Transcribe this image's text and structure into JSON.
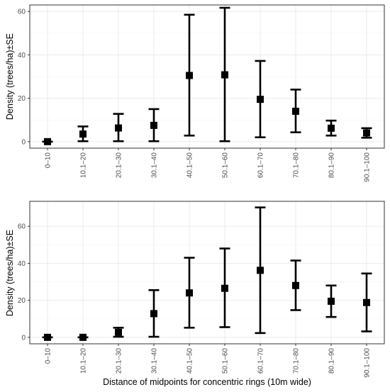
{
  "chart_data": [
    {
      "type": "scatter",
      "ylabel": "Density (trees/ha)±SE",
      "xlabel": "",
      "ylim": [
        -3,
        63
      ],
      "yticks": [
        0,
        20,
        40,
        60
      ],
      "grid": true,
      "categories": [
        "0–10",
        "10.1–20",
        "20.1–30",
        "30.1–40",
        "40.1–50",
        "50.1–60",
        "60.1–70",
        "70.1–80",
        "80.1–90",
        "90.1–100"
      ],
      "mean": [
        0,
        3.5,
        6.3,
        7.5,
        30.5,
        30.8,
        19.5,
        14.0,
        6.2,
        4.0
      ],
      "lower": [
        0,
        0.2,
        0.2,
        0.2,
        2.8,
        0.2,
        2.0,
        4.3,
        2.8,
        1.8
      ],
      "upper": [
        0,
        7.0,
        12.8,
        15.0,
        58.5,
        61.7,
        37.2,
        24.0,
        9.7,
        6.2
      ]
    },
    {
      "type": "scatter",
      "ylabel": "Density (trees/ha)±SE",
      "xlabel": "Distance of midpoints for concentric rings (10m wide)",
      "ylim": [
        -3.5,
        73.5
      ],
      "yticks": [
        0,
        20,
        40,
        60
      ],
      "grid": true,
      "categories": [
        "0–10",
        "10.1–20",
        "20.1–30",
        "30.1–40",
        "40.1–50",
        "50.1–60",
        "60.1–70",
        "70.1–80",
        "80.1–90",
        "90.1–100"
      ],
      "mean": [
        0,
        0,
        2.7,
        12.8,
        24.0,
        26.5,
        36.2,
        28.0,
        19.5,
        18.8
      ],
      "lower": [
        0,
        0,
        0.3,
        0.3,
        5.2,
        5.5,
        2.3,
        14.7,
        11.0,
        3.2
      ],
      "upper": [
        0,
        0,
        5.2,
        25.5,
        43.0,
        48.0,
        70.2,
        41.5,
        28.0,
        34.5
      ]
    }
  ]
}
